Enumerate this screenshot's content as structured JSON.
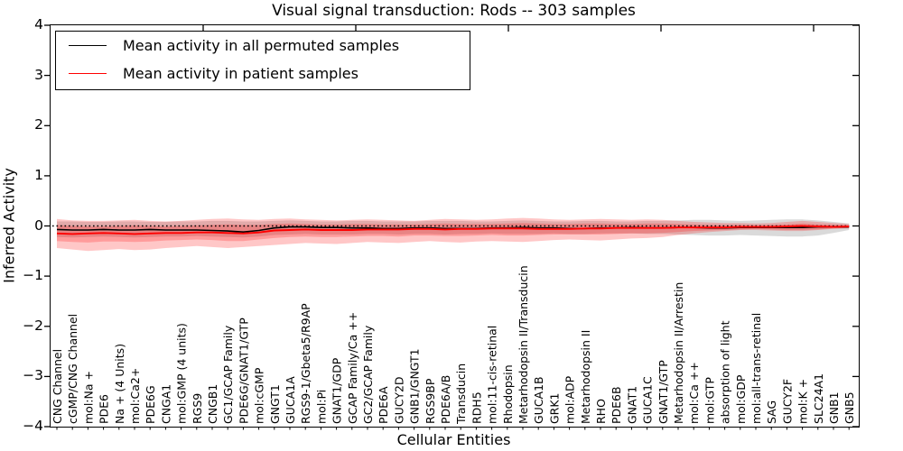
{
  "figure": {
    "title": "Visual signal transduction: Rods -- 303 samples",
    "xlabel": "Cellular Entities",
    "ylabel": "Inferred Activity"
  },
  "legend": {
    "entries": [
      {
        "label": "Mean activity in all permuted samples",
        "color": "#000000"
      },
      {
        "label": "Mean activity in patient samples",
        "color": "#ff0000"
      }
    ],
    "position": "upper left"
  },
  "chart_data": {
    "type": "line",
    "title": "Visual signal transduction: Rods -- 303 samples",
    "xlabel": "Cellular Entities",
    "ylabel": "Inferred Activity",
    "ylim": [
      -4,
      4
    ],
    "y_ticks": [
      4,
      3,
      2,
      1,
      0,
      -1,
      -2,
      -3,
      -4
    ],
    "y_tick_labels": [
      "4",
      "3",
      "2",
      "1",
      "0",
      "−1",
      "−2",
      "−3",
      "−4"
    ],
    "grid": false,
    "zero_line": {
      "y": 0,
      "style": "dotted",
      "color": "#000000"
    },
    "categories": [
      "CNG Channel",
      "cGMP/CNG Channel",
      "mol:Na +",
      "PDE6",
      "Na + (4 Units)",
      "mol:Ca2+",
      "PDE6G",
      "CNGA1",
      "mol:GMP (4 units)",
      "RGS9",
      "CNGB1",
      "GC1/GCAP Family",
      "PDE6G/GNAT1/GTP",
      "mol:cGMP",
      "GNGT1",
      "GUCA1A",
      "RGS9-1/Gbeta5/R9AP",
      "mol:Pi",
      "GNAT1/GDP",
      "GCAP Family/Ca ++",
      "GC2/GCAP Family",
      "PDE6A",
      "GUCY2D",
      "GNB1/GNGT1",
      "RGS9BP",
      "PDE6A/B",
      "Transducin",
      "RDH5",
      "mol:11-cis-retinal",
      "Rhodopsin",
      "Metarhodopsin II/Transducin",
      "GUCA1B",
      "GRK1",
      "mol:ADP",
      "Metarhodopsin II",
      "RHO",
      "PDE6B",
      "GNAT1",
      "GUCA1C",
      "GNAT1/GTP",
      "Metarhodopsin II/Arrestin",
      "mol:Ca ++",
      "mol:GTP",
      "absorption of light",
      "mol:GDP",
      "mol:all-trans-retinal",
      "SAG",
      "GUCY2F",
      "mol:K +",
      "SLC24A1",
      "GNB1",
      "GNB5"
    ],
    "series": [
      {
        "name": "Mean activity in all permuted samples",
        "color": "#000000",
        "values": [
          -0.07,
          -0.08,
          -0.08,
          -0.07,
          -0.08,
          -0.08,
          -0.07,
          -0.08,
          -0.08,
          -0.08,
          -0.09,
          -0.1,
          -0.12,
          -0.09,
          -0.04,
          -0.02,
          -0.02,
          -0.03,
          -0.03,
          -0.04,
          -0.04,
          -0.05,
          -0.05,
          -0.04,
          -0.04,
          -0.05,
          -0.05,
          -0.05,
          -0.04,
          -0.04,
          -0.03,
          -0.04,
          -0.04,
          -0.05,
          -0.05,
          -0.04,
          -0.04,
          -0.03,
          -0.04,
          -0.04,
          -0.03,
          -0.03,
          -0.04,
          -0.04,
          -0.03,
          -0.03,
          -0.03,
          -0.03,
          -0.03,
          -0.02,
          -0.02,
          -0.02
        ]
      },
      {
        "name": "Mean activity in patient samples",
        "color": "#ff0000",
        "values": [
          -0.15,
          -0.16,
          -0.15,
          -0.14,
          -0.15,
          -0.16,
          -0.15,
          -0.14,
          -0.14,
          -0.13,
          -0.13,
          -0.14,
          -0.15,
          -0.13,
          -0.09,
          -0.08,
          -0.07,
          -0.08,
          -0.08,
          -0.08,
          -0.07,
          -0.07,
          -0.07,
          -0.06,
          -0.06,
          -0.07,
          -0.06,
          -0.06,
          -0.05,
          -0.05,
          -0.05,
          -0.06,
          -0.06,
          -0.06,
          -0.05,
          -0.05,
          -0.04,
          -0.04,
          -0.04,
          -0.04,
          -0.03,
          -0.03,
          -0.03,
          -0.03,
          -0.02,
          -0.02,
          -0.02,
          -0.01,
          0.0,
          -0.01,
          -0.02,
          -0.01
        ]
      }
    ],
    "bands": [
      {
        "name": "permuted-samples-band",
        "color": "rgba(140,140,140,0.32)",
        "upper": [
          0.09,
          0.09,
          0.08,
          0.08,
          0.09,
          0.09,
          0.08,
          0.08,
          0.09,
          0.09,
          0.1,
          0.1,
          0.09,
          0.09,
          0.1,
          0.11,
          0.1,
          0.09,
          0.09,
          0.1,
          0.1,
          0.09,
          0.09,
          0.09,
          0.1,
          0.1,
          0.1,
          0.09,
          0.09,
          0.1,
          0.11,
          0.1,
          0.09,
          0.09,
          0.1,
          0.1,
          0.09,
          0.09,
          0.1,
          0.1,
          0.11,
          0.12,
          0.12,
          0.11,
          0.1,
          0.11,
          0.12,
          0.13,
          0.13,
          0.11,
          0.08,
          0.05
        ],
        "lower": [
          -0.22,
          -0.23,
          -0.22,
          -0.21,
          -0.22,
          -0.23,
          -0.22,
          -0.21,
          -0.21,
          -0.2,
          -0.21,
          -0.22,
          -0.23,
          -0.21,
          -0.18,
          -0.17,
          -0.16,
          -0.17,
          -0.17,
          -0.17,
          -0.16,
          -0.16,
          -0.17,
          -0.16,
          -0.16,
          -0.17,
          -0.16,
          -0.16,
          -0.15,
          -0.16,
          -0.16,
          -0.16,
          -0.15,
          -0.16,
          -0.16,
          -0.15,
          -0.15,
          -0.15,
          -0.16,
          -0.16,
          -0.17,
          -0.18,
          -0.19,
          -0.19,
          -0.18,
          -0.19,
          -0.2,
          -0.21,
          -0.21,
          -0.19,
          -0.14,
          -0.08
        ]
      },
      {
        "name": "patient-samples-band-outer",
        "color": "rgba(255,0,0,0.22)",
        "upper": [
          0.14,
          0.11,
          0.1,
          0.1,
          0.11,
          0.12,
          0.1,
          0.09,
          0.1,
          0.12,
          0.14,
          0.15,
          0.13,
          0.12,
          0.14,
          0.15,
          0.13,
          0.12,
          0.11,
          0.12,
          0.13,
          0.12,
          0.11,
          0.1,
          0.12,
          0.14,
          0.13,
          0.12,
          0.13,
          0.15,
          0.16,
          0.15,
          0.13,
          0.12,
          0.13,
          0.14,
          0.13,
          0.12,
          0.13,
          0.12,
          0.1,
          0.08,
          0.07,
          0.06,
          0.06,
          0.05,
          0.06,
          0.08,
          0.1,
          0.08,
          0.06,
          0.04
        ],
        "lower": [
          -0.44,
          -0.47,
          -0.5,
          -0.48,
          -0.46,
          -0.48,
          -0.47,
          -0.44,
          -0.42,
          -0.4,
          -0.42,
          -0.44,
          -0.42,
          -0.4,
          -0.38,
          -0.36,
          -0.34,
          -0.35,
          -0.36,
          -0.34,
          -0.32,
          -0.33,
          -0.34,
          -0.32,
          -0.3,
          -0.32,
          -0.33,
          -0.31,
          -0.3,
          -0.31,
          -0.32,
          -0.3,
          -0.28,
          -0.27,
          -0.28,
          -0.29,
          -0.27,
          -0.25,
          -0.24,
          -0.22,
          -0.18,
          -0.15,
          -0.12,
          -0.1,
          -0.08,
          -0.08,
          -0.09,
          -0.1,
          -0.1,
          -0.08,
          -0.06,
          -0.05
        ]
      },
      {
        "name": "patient-samples-band-inner",
        "color": "rgba(255,0,0,0.22)",
        "upper": [
          0.02,
          0.0,
          -0.01,
          -0.01,
          0.0,
          0.01,
          0.0,
          -0.01,
          0.0,
          0.01,
          0.02,
          0.03,
          0.02,
          0.02,
          0.04,
          0.05,
          0.04,
          0.03,
          0.03,
          0.04,
          0.04,
          0.03,
          0.03,
          0.03,
          0.04,
          0.05,
          0.04,
          0.04,
          0.04,
          0.05,
          0.06,
          0.05,
          0.04,
          0.04,
          0.05,
          0.05,
          0.04,
          0.04,
          0.05,
          0.05,
          0.04,
          0.03,
          0.02,
          0.02,
          0.02,
          0.01,
          0.02,
          0.03,
          0.05,
          0.03,
          0.02,
          0.01
        ],
        "lower": [
          -0.3,
          -0.32,
          -0.33,
          -0.31,
          -0.31,
          -0.32,
          -0.31,
          -0.29,
          -0.28,
          -0.27,
          -0.28,
          -0.3,
          -0.3,
          -0.27,
          -0.24,
          -0.22,
          -0.21,
          -0.22,
          -0.22,
          -0.21,
          -0.2,
          -0.2,
          -0.21,
          -0.19,
          -0.19,
          -0.2,
          -0.2,
          -0.19,
          -0.18,
          -0.19,
          -0.19,
          -0.18,
          -0.17,
          -0.17,
          -0.17,
          -0.17,
          -0.16,
          -0.15,
          -0.15,
          -0.14,
          -0.12,
          -0.1,
          -0.09,
          -0.08,
          -0.07,
          -0.06,
          -0.07,
          -0.08,
          -0.08,
          -0.07,
          -0.05,
          -0.04
        ]
      }
    ]
  }
}
